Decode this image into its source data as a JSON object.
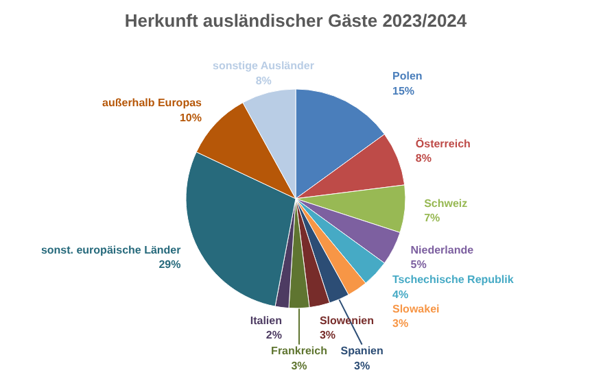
{
  "chart_data": {
    "type": "pie",
    "title": "Herkunft ausländischer Gäste 2023/2024",
    "categories": [
      "Polen",
      "Österreich",
      "Schweiz",
      "Niederlande",
      "Tschechische Republik",
      "Slowakei",
      "Spanien",
      "Slowenien",
      "Frankreich",
      "Italien",
      "sonst. europäische Länder",
      "außerhalb Europas",
      "sonstige Ausländer"
    ],
    "values": [
      15,
      8,
      7,
      5,
      4,
      3,
      3,
      3,
      3,
      2,
      29,
      10,
      8
    ],
    "value_labels": [
      "15%",
      "8%",
      "7%",
      "5%",
      "4%",
      "3%",
      "3%",
      "3%",
      "3%",
      "2%",
      "29%",
      "10%",
      "8%"
    ],
    "colors": [
      "#4a7ebb",
      "#be4b48",
      "#98b954",
      "#7d60a0",
      "#46aac5",
      "#f79646",
      "#2c4d75",
      "#772c2a",
      "#5f7530",
      "#4d3b62",
      "#276a7c",
      "#b65708",
      "#b9cde5"
    ]
  }
}
